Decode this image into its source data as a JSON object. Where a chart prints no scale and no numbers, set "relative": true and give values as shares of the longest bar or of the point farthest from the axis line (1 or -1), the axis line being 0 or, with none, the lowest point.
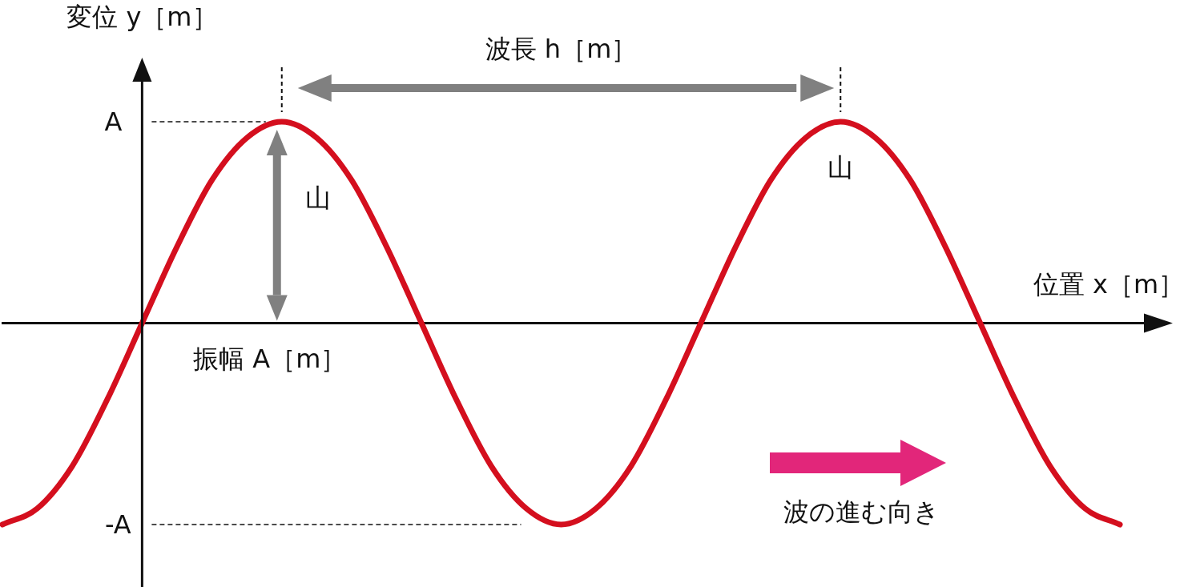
{
  "chart_data": {
    "type": "line",
    "xlabel": "位置 x［m］",
    "ylabel": "変位 y［m］",
    "categories": [
      null,
      null,
      null,
      null,
      null,
      null,
      null,
      null,
      null,
      null,
      null,
      null,
      null,
      null,
      null,
      null,
      null,
      null,
      null,
      null,
      null,
      null,
      null,
      null,
      null,
      null,
      null,
      null,
      null,
      null,
      null,
      null,
      null
    ],
    "series": [
      {
        "color": "#d40f1e",
        "values": [
          -1,
          -0.92,
          -0.71,
          -0.38,
          0,
          0.38,
          0.71,
          0.92,
          1,
          0.92,
          0.71,
          0.38,
          0,
          -0.38,
          -0.71,
          -0.92,
          -1,
          -0.92,
          -0.71,
          -0.38,
          0,
          0.38,
          0.71,
          0.92,
          1,
          0.92,
          0.71,
          0.38,
          0,
          -0.38,
          -0.71,
          -0.92,
          -1
        ]
      }
    ],
    "relative": true,
    "annotations": [
      "波長 h［m］",
      "山",
      "山",
      "振幅 A［m］",
      "波の進む向き",
      "A",
      "-A"
    ],
    "grid": false,
    "legend": false,
    "marker": "none",
    "line_style": "solid"
  }
}
